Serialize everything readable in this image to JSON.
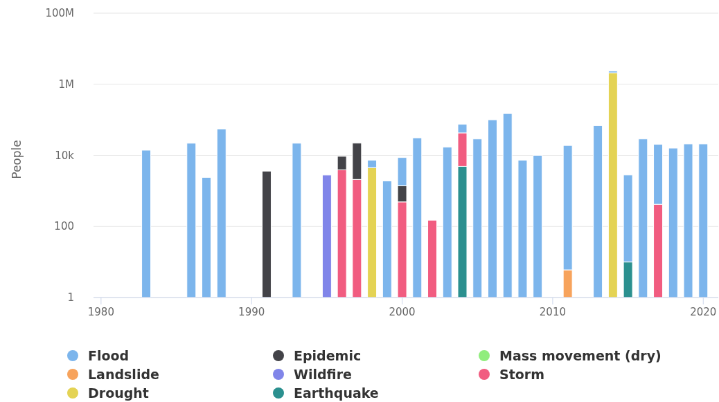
{
  "chart_data": {
    "type": "bar",
    "stacked": true,
    "ylabel": "People",
    "log": true,
    "grid": "y",
    "legend": "bottom",
    "x": [
      1983,
      1986,
      1987,
      1988,
      1991,
      1993,
      1995,
      1996,
      1997,
      1998,
      1999,
      2000,
      2001,
      2002,
      2003,
      2004,
      2005,
      2006,
      2007,
      2008,
      2009,
      2011,
      2013,
      2014,
      2015,
      2016,
      2017,
      2018,
      2019,
      2020
    ],
    "xlim": [
      1979.5,
      2021
    ],
    "xticks": [
      1980,
      1990,
      2000,
      2010,
      2020
    ],
    "ylim": [
      1,
      100000000
    ],
    "yticks": [
      1,
      100,
      {
        "value": 10000,
        "label": "10k"
      },
      {
        "value": 1000000,
        "label": "1M"
      },
      {
        "value": 100000000,
        "label": "100M"
      }
    ],
    "series": [
      {
        "name": "Earthquake",
        "color": "#2b908f",
        "values": [
          null,
          null,
          null,
          null,
          null,
          null,
          null,
          null,
          null,
          null,
          null,
          null,
          null,
          null,
          null,
          4900,
          null,
          null,
          null,
          null,
          null,
          null,
          null,
          null,
          10,
          null,
          null,
          null,
          null,
          null
        ]
      },
      {
        "name": "Drought",
        "color": "#e4d354",
        "values": [
          null,
          null,
          null,
          null,
          null,
          null,
          null,
          null,
          null,
          4500,
          null,
          null,
          null,
          null,
          null,
          null,
          null,
          null,
          null,
          null,
          null,
          null,
          null,
          2100000,
          null,
          null,
          null,
          null,
          null,
          null
        ]
      },
      {
        "name": "Storm",
        "color": "#f15c80",
        "values": [
          null,
          null,
          null,
          null,
          null,
          null,
          null,
          3900,
          2100,
          null,
          null,
          490,
          null,
          150,
          null,
          38000,
          null,
          null,
          null,
          null,
          null,
          null,
          null,
          null,
          null,
          null,
          420,
          null,
          null,
          null
        ]
      },
      {
        "name": "Wildfire",
        "color": "#8085e9",
        "values": [
          null,
          null,
          null,
          null,
          null,
          null,
          2800,
          null,
          null,
          null,
          null,
          null,
          null,
          null,
          null,
          null,
          null,
          null,
          null,
          null,
          null,
          null,
          null,
          null,
          null,
          null,
          null,
          null,
          null,
          null
        ]
      },
      {
        "name": "Landslide",
        "color": "#f7a35c",
        "values": [
          null,
          null,
          null,
          null,
          null,
          null,
          null,
          null,
          null,
          null,
          null,
          null,
          null,
          null,
          null,
          null,
          null,
          null,
          null,
          null,
          null,
          6,
          null,
          null,
          null,
          null,
          null,
          null,
          null,
          null
        ]
      },
      {
        "name": "Mass movement (dry)",
        "color": "#90ed7d",
        "values": [
          null,
          null,
          null,
          null,
          null,
          null,
          null,
          null,
          null,
          null,
          null,
          null,
          null,
          null,
          null,
          null,
          null,
          null,
          null,
          null,
          null,
          null,
          null,
          null,
          null,
          null,
          null,
          null,
          null,
          null
        ]
      },
      {
        "name": "Epidemic",
        "color": "#434348",
        "values": [
          null,
          null,
          null,
          null,
          3600,
          null,
          null,
          5500,
          20000,
          null,
          null,
          900,
          null,
          null,
          null,
          null,
          null,
          null,
          null,
          null,
          null,
          null,
          null,
          null,
          null,
          null,
          null,
          null,
          null,
          null
        ]
      },
      {
        "name": "Flood",
        "color": "#7cb5ec",
        "values": [
          14000,
          22000,
          2400,
          55000,
          null,
          22000,
          null,
          null,
          null,
          2800,
          1900,
          7300,
          31000,
          null,
          17000,
          32000,
          29000,
          100000,
          150000,
          7300,
          10000,
          19000,
          69000,
          250000,
          2800,
          29000,
          20000,
          16000,
          21000,
          21000
        ]
      }
    ]
  }
}
